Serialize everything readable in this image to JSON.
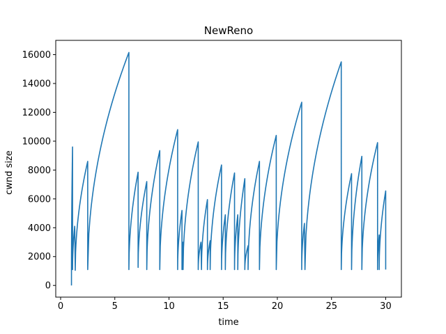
{
  "chart_data": {
    "type": "line",
    "title": "NewReno",
    "xlabel": "time",
    "ylabel": "cwnd size",
    "xlim": [
      -0.45,
      31.45
    ],
    "ylim": [
      -810,
      16990
    ],
    "x_ticks": [
      0,
      5,
      10,
      15,
      20,
      25,
      30
    ],
    "y_ticks": [
      0,
      2000,
      4000,
      6000,
      8000,
      10000,
      12000,
      14000,
      16000
    ],
    "grid": false,
    "series": [
      {
        "color": "#1f77b4",
        "segments": [
          {
            "start": [
              1.0,
              0
            ],
            "peak": [
              1.1,
              9600
            ]
          },
          {
            "start": [
              1.1,
              1100
            ],
            "peak": [
              1.3,
              4100
            ]
          },
          {
            "start": [
              1.35,
              1050
            ],
            "peak": [
              2.5,
              8600
            ]
          },
          {
            "start": [
              2.5,
              1100
            ],
            "peak": [
              6.3,
              16150
            ]
          },
          {
            "start": [
              6.3,
              1100
            ],
            "peak": [
              7.15,
              7850
            ]
          },
          {
            "start": [
              7.15,
              1250
            ],
            "peak": [
              7.95,
              7200
            ]
          },
          {
            "start": [
              7.95,
              1100
            ],
            "peak": [
              9.15,
              9350
            ]
          },
          {
            "start": [
              9.15,
              1100
            ],
            "peak": [
              10.8,
              10800
            ]
          },
          {
            "start": [
              10.8,
              1100
            ],
            "peak": [
              11.2,
              5200
            ]
          },
          {
            "start": [
              11.2,
              1100
            ],
            "peak": [
              11.3,
              3000
            ]
          },
          {
            "start": [
              11.3,
              1100
            ],
            "peak": [
              12.7,
              9950
            ]
          },
          {
            "start": [
              12.7,
              1100
            ],
            "peak": [
              12.95,
              3000
            ]
          },
          {
            "start": [
              13.0,
              1100
            ],
            "peak": [
              13.55,
              5950
            ]
          },
          {
            "start": [
              13.55,
              1100
            ],
            "peak": [
              13.8,
              3100
            ]
          },
          {
            "start": [
              13.8,
              1100
            ],
            "peak": [
              14.85,
              8350
            ]
          },
          {
            "start": [
              14.85,
              1100
            ],
            "peak": [
              15.2,
              4900
            ]
          },
          {
            "start": [
              15.2,
              1100
            ],
            "peak": [
              16.05,
              7800
            ]
          },
          {
            "start": [
              16.05,
              1100
            ],
            "peak": [
              16.35,
              4900
            ]
          },
          {
            "start": [
              16.35,
              1100
            ],
            "peak": [
              17.0,
              7400
            ]
          },
          {
            "start": [
              17.0,
              1100
            ],
            "peak": [
              17.3,
              2750
            ]
          },
          {
            "start": [
              17.3,
              1100
            ],
            "peak": [
              18.35,
              8600
            ]
          },
          {
            "start": [
              18.35,
              1100
            ],
            "peak": [
              19.9,
              10400
            ]
          },
          {
            "start": [
              19.9,
              1100
            ],
            "peak": [
              22.25,
              12700
            ]
          },
          {
            "start": [
              22.25,
              1100
            ],
            "peak": [
              22.5,
              4300
            ]
          },
          {
            "start": [
              22.55,
              1100
            ],
            "peak": [
              25.9,
              15500
            ]
          },
          {
            "start": [
              25.9,
              1100
            ],
            "peak": [
              26.85,
              7750
            ]
          },
          {
            "start": [
              26.85,
              1100
            ],
            "peak": [
              27.8,
              8950
            ]
          },
          {
            "start": [
              27.8,
              1100
            ],
            "peak": [
              29.25,
              9900
            ]
          },
          {
            "start": [
              29.25,
              1100
            ],
            "peak": [
              29.4,
              3500
            ]
          },
          {
            "start": [
              29.4,
              1100
            ],
            "peak": [
              30.0,
              6550
            ]
          },
          {
            "start": [
              30.0,
              1100
            ],
            "peak": [
              30.0,
              1100
            ]
          }
        ]
      }
    ]
  }
}
